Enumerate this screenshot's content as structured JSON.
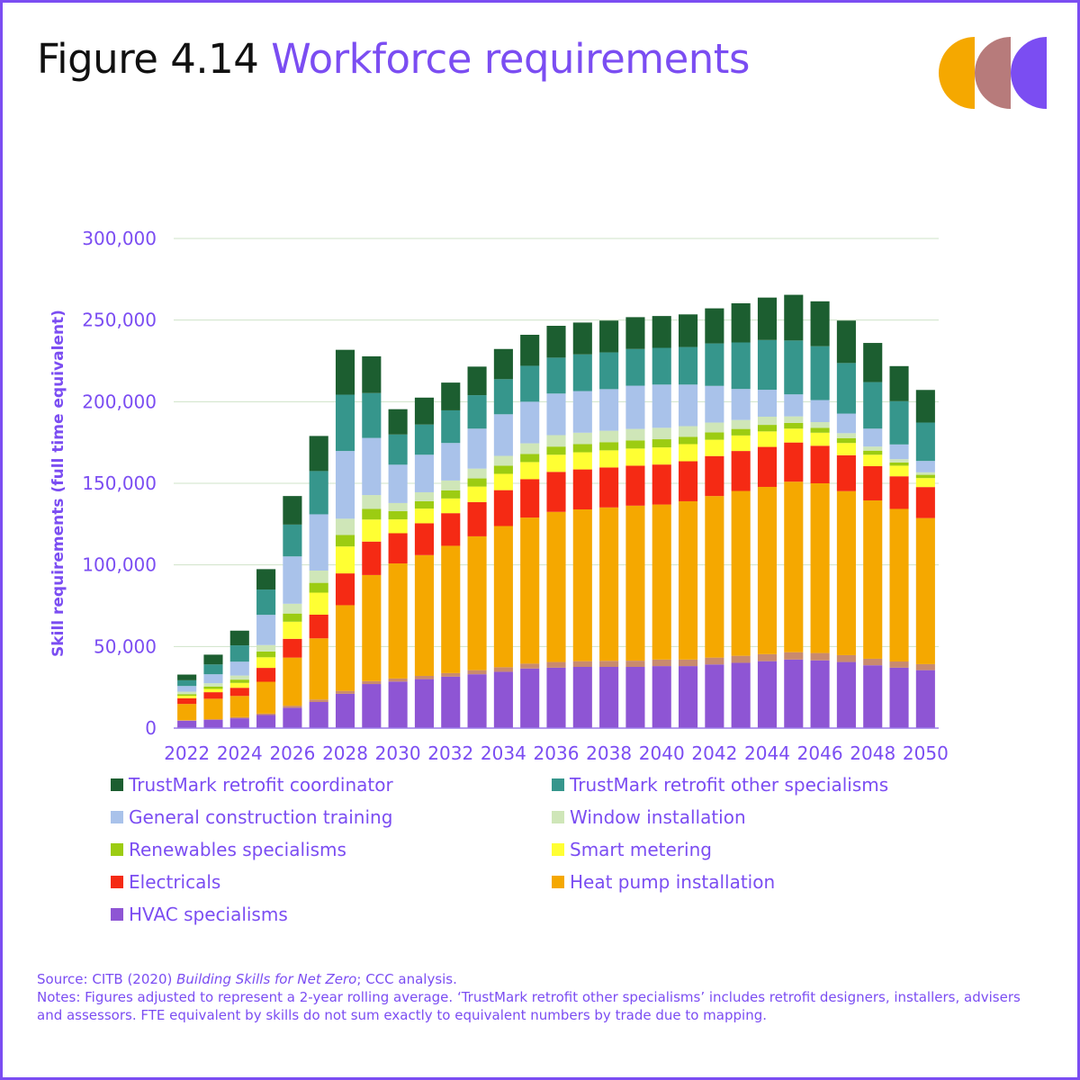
{
  "header": {
    "figure_number": "Figure 4.14",
    "figure_title": "Workforce requirements"
  },
  "logo": {
    "colors": [
      "#f5a800",
      "#b77b7b",
      "#7b4df2"
    ]
  },
  "footer": {
    "source_prefix": "Source: CITB (2020) ",
    "source_italic": "Building Skills for Net Zero",
    "source_suffix": "; CCC analysis.",
    "notes": "Notes: Figures adjusted to represent a 2-year rolling average. ‘TrustMark retrofit other specialisms’ includes retrofit designers, installers, advisers and assessors. FTE equivalent by skills do not sum exactly to equivalent numbers by trade due to mapping."
  },
  "chart_data": {
    "type": "bar",
    "stacked": true,
    "ylabel": "Skill requirements (full time equivalent)",
    "ylim": [
      0,
      300000
    ],
    "yticks": [
      0,
      50000,
      100000,
      150000,
      200000,
      250000,
      300000
    ],
    "ytick_labels": [
      "0",
      "50,000",
      "100,000",
      "150,000",
      "200,000",
      "250,000",
      "300,000"
    ],
    "xtick_labels": [
      "2022",
      "2024",
      "2026",
      "2028",
      "2030",
      "2032",
      "2034",
      "2036",
      "2038",
      "2040",
      "2042",
      "2044",
      "2046",
      "2048",
      "2050"
    ],
    "grid": true,
    "legend_position": "bottom",
    "categories": [
      "2022",
      "2023",
      "2024",
      "2025",
      "2026",
      "2027",
      "2028",
      "2029",
      "2030",
      "2031",
      "2032",
      "2033",
      "2034",
      "2035",
      "2036",
      "2037",
      "2038",
      "2039",
      "2040",
      "2041",
      "2042",
      "2043",
      "2044",
      "2045",
      "2046",
      "2047",
      "2048",
      "2049",
      "2050"
    ],
    "extra_band": {
      "color": "#c98a6e",
      "values": [
        300,
        500,
        700,
        900,
        1200,
        1500,
        1800,
        1800,
        1900,
        2000,
        2200,
        2500,
        2800,
        3000,
        3500,
        3500,
        3700,
        3800,
        4000,
        4000,
        4200,
        4300,
        4300,
        4500,
        4500,
        4200,
        4000,
        3800,
        3700
      ]
    },
    "series": [
      {
        "name": "HVAC specialisms",
        "color": "#8e55d4",
        "values": [
          4500,
          5000,
          6000,
          8000,
          12500,
          16000,
          21000,
          27000,
          28500,
          30000,
          31500,
          33000,
          34500,
          36500,
          37000,
          37500,
          37500,
          37500,
          38000,
          38000,
          39000,
          40000,
          41000,
          42000,
          41500,
          40500,
          38500,
          37000,
          35500
        ]
      },
      {
        "name": "Heat pump installation",
        "color": "#f5a800",
        "values": [
          10000,
          12500,
          13000,
          19500,
          29500,
          37500,
          52500,
          65000,
          70500,
          74000,
          78000,
          82000,
          86500,
          89500,
          92000,
          93000,
          94000,
          95000,
          95000,
          97000,
          99000,
          101000,
          102500,
          104500,
          104000,
          100500,
          97000,
          93500,
          89500
        ]
      },
      {
        "name": "Electricals",
        "color": "#f52a14",
        "values": [
          3500,
          4000,
          5000,
          8500,
          11500,
          14500,
          19500,
          20500,
          18500,
          19500,
          20000,
          21000,
          22000,
          23500,
          24500,
          24500,
          24500,
          24500,
          24500,
          24500,
          24500,
          24500,
          24500,
          24000,
          23000,
          22000,
          21000,
          20000,
          19000
        ]
      },
      {
        "name": "Smart metering",
        "color": "#ffff33",
        "values": [
          1500,
          2000,
          3000,
          6500,
          10500,
          13500,
          16500,
          13500,
          8500,
          9000,
          9000,
          9500,
          10000,
          10500,
          10500,
          10500,
          10500,
          10500,
          10500,
          10500,
          10000,
          9500,
          9500,
          8500,
          8000,
          7500,
          7000,
          6500,
          5500
        ]
      },
      {
        "name": "Renewables specialisms",
        "color": "#9ccc12",
        "values": [
          1000,
          1500,
          2000,
          3500,
          5000,
          6000,
          7000,
          6500,
          5000,
          4500,
          5000,
          5000,
          5000,
          5000,
          5000,
          5000,
          5000,
          5000,
          5000,
          4500,
          4500,
          4000,
          4000,
          3500,
          3000,
          3000,
          2500,
          2000,
          2000
        ]
      },
      {
        "name": "Window installation",
        "color": "#cfe6b8",
        "values": [
          1500,
          2000,
          2500,
          4000,
          6000,
          7500,
          10000,
          8500,
          5000,
          5500,
          6000,
          6000,
          6000,
          6500,
          7000,
          7000,
          7000,
          7000,
          7000,
          6500,
          6000,
          5500,
          5000,
          4000,
          3500,
          3000,
          2500,
          2000,
          1500
        ]
      },
      {
        "name": "General construction training",
        "color": "#a9c2ea",
        "values": [
          3500,
          5500,
          8500,
          18500,
          29000,
          34500,
          41500,
          35000,
          23500,
          23000,
          23000,
          24500,
          25500,
          25500,
          25500,
          25500,
          25500,
          26500,
          26500,
          25500,
          22500,
          19000,
          16500,
          13500,
          13500,
          12000,
          11000,
          9000,
          7000
        ]
      },
      {
        "name": "TrustMark retrofit other specialisms",
        "color": "#36968c",
        "values": [
          3500,
          6000,
          10000,
          15500,
          19500,
          26500,
          34500,
          27500,
          18500,
          18500,
          20000,
          20500,
          21500,
          22000,
          22000,
          22500,
          22500,
          22500,
          22500,
          23000,
          26000,
          28500,
          30500,
          33000,
          33000,
          31000,
          28500,
          26500,
          23500
        ]
      },
      {
        "name": "TrustMark retrofit coordinator",
        "color": "#1c5e30",
        "values": [
          3500,
          6000,
          9000,
          12500,
          17500,
          21500,
          27500,
          22500,
          15500,
          16500,
          17000,
          17500,
          18500,
          19000,
          19500,
          19500,
          19500,
          19500,
          19500,
          20000,
          21500,
          24000,
          26000,
          28000,
          27500,
          26000,
          24000,
          21500,
          20000
        ]
      }
    ]
  }
}
